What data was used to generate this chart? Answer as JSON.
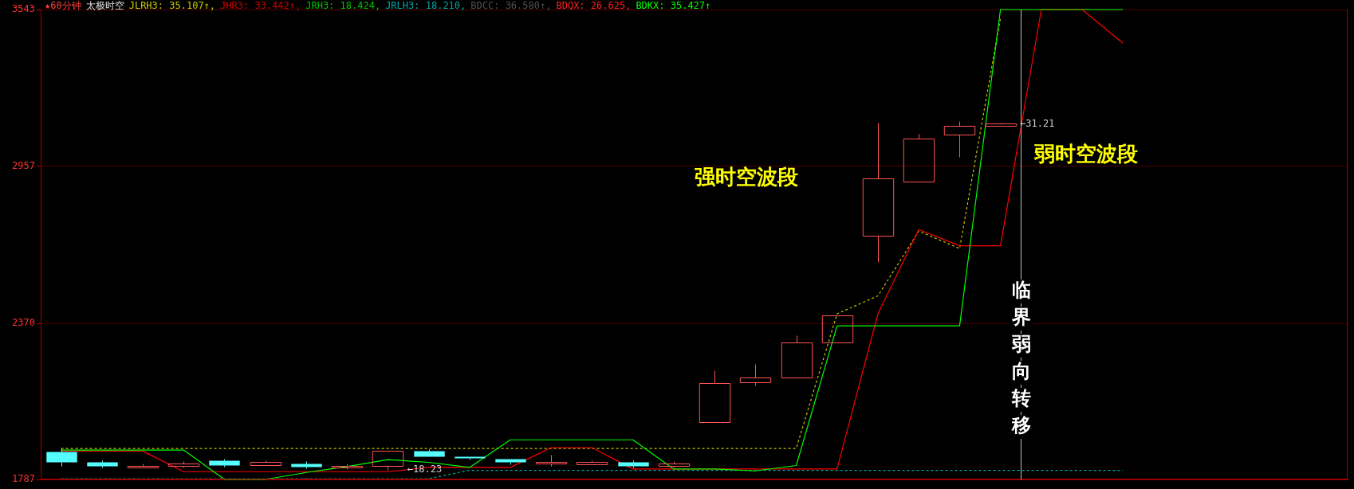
{
  "chart_data": {
    "type": "candlestick",
    "title": "★60分钟",
    "subtitle": "太极时空",
    "categories": [
      null,
      null,
      null,
      null,
      null,
      null,
      null,
      null,
      null,
      null,
      null,
      null,
      null,
      null,
      null,
      null,
      null,
      null,
      null,
      null,
      null,
      null,
      null,
      null,
      null,
      null,
      null,
      null,
      null,
      null,
      null,
      null
    ],
    "ohlc": [
      [
        1890,
        1903,
        1839,
        1851
      ],
      [
        1851,
        1858,
        1832,
        1839
      ],
      [
        1832,
        1848,
        1832,
        1839
      ],
      [
        1839,
        1855,
        1832,
        1848
      ],
      [
        1858,
        1864,
        1835,
        1842
      ],
      [
        1842,
        1858,
        1842,
        1851
      ],
      [
        1848,
        1855,
        1829,
        1835
      ],
      [
        1832,
        1846,
        1825,
        1839
      ],
      [
        1839,
        1893,
        1823,
        1893
      ],
      [
        1893,
        1900,
        1874,
        1874
      ],
      [
        1874,
        1874,
        1861,
        1868
      ],
      [
        1864,
        1864,
        1845,
        1851
      ],
      [
        1848,
        1880,
        1839,
        1851
      ],
      [
        1845,
        1858,
        1845,
        1851
      ],
      [
        1851,
        1858,
        1832,
        1839
      ],
      [
        1839,
        1855,
        1832,
        1848
      ],
      [
        2000,
        2196,
        2000,
        2148
      ],
      [
        2151,
        2219,
        2138,
        2167
      ],
      [
        2167,
        2325,
        2167,
        2299
      ],
      [
        2299,
        2399,
        2299,
        2399
      ],
      [
        2699,
        3120,
        2599,
        2911
      ],
      [
        2899,
        3079,
        2899,
        3060
      ],
      [
        3076,
        3127,
        2992,
        3108
      ],
      [
        3108,
        3121,
        3108,
        3118
      ],
      null,
      null,
      null,
      null,
      null,
      null,
      null,
      null
    ],
    "colors": [
      "#54ffff",
      "#54ffff",
      "#ff5454",
      "#ff5454",
      "#54ffff",
      "#ff5454",
      "#54ffff",
      "#ff5454",
      "#ff5454",
      "#54ffff",
      "#54ffff",
      "#54ffff",
      "#ff5454",
      "#ff5454",
      "#54ffff",
      "#ff5454",
      "#ff5454",
      "#ff5454",
      "#ff5454",
      "#ff5454",
      "#ff5454",
      "#ff5454",
      "#ff5454",
      "#ff5454",
      null,
      null,
      null,
      null,
      null,
      null,
      null,
      null
    ],
    "series": [
      {
        "type": "line",
        "color": "#00ff00",
        "line_style": "solid",
        "values": [
          1897,
          1897,
          1897,
          1897,
          1787,
          1787,
          1813,
          1835,
          1861,
          1851,
          1832,
          1935,
          1935,
          1935,
          1935,
          1826,
          1826,
          1819,
          1839,
          2361,
          2361,
          2361,
          2361,
          3543,
          3543,
          3543,
          3543,
          null,
          null,
          null,
          null,
          null
        ]
      },
      {
        "type": "line",
        "color": "#ff0000",
        "line_style": "solid",
        "values": [
          1893,
          1893,
          1893,
          1816,
          1816,
          1816,
          1816,
          1816,
          1816,
          1832,
          1832,
          1832,
          1906,
          1906,
          1826,
          1826,
          1826,
          1826,
          1826,
          1826,
          2406,
          2721,
          2660,
          2660,
          3543,
          3543,
          3417,
          null,
          null,
          null,
          null,
          null
        ]
      },
      {
        "type": "line",
        "color": "#c8c800",
        "line_style": "dashed",
        "values": [
          1903,
          1903,
          1903,
          1903,
          1903,
          1903,
          1903,
          1903,
          1903,
          1903,
          1903,
          1903,
          1903,
          1903,
          1903,
          1903,
          1903,
          1903,
          1903,
          2406,
          2473,
          2715,
          2650,
          3511,
          null,
          null,
          null,
          null,
          null,
          null,
          null,
          null
        ]
      },
      {
        "type": "line",
        "color": "#00a8a8",
        "line_style": "dashed",
        "values": [
          1790,
          1790,
          1790,
          1790,
          1790,
          1790,
          1790,
          1790,
          1790,
          1790,
          1821,
          1821,
          1821,
          1821,
          1821,
          1821,
          1821,
          1821,
          1821,
          1821,
          1821,
          1821,
          1821,
          1821,
          1821,
          1821,
          1821,
          null,
          null,
          null,
          null,
          null
        ]
      }
    ],
    "ylim": [
      1787,
      3543
    ],
    "yticks": [
      1787,
      2370,
      2957,
      3543
    ],
    "grid": "y",
    "tick_labels": "y",
    "legend": false,
    "marker": "none",
    "ref_lines": [
      {
        "axis": "x",
        "label": "临界弱向转移",
        "color": "#c0c0c0"
      }
    ],
    "annotations": [
      "JLRH3: 35.107↑,",
      "JHR3: 33.442↑,",
      "JRH3: 18.424,",
      "JRLH3: 18.210,",
      "BDCC: 36.580↑,",
      "BDQX: 26.625,",
      "BDKX: 35.427↑",
      {
        "text": "←18.23",
        "y": 1823
      },
      "←31.21",
      "强时空波段",
      "弱时空波段"
    ]
  }
}
